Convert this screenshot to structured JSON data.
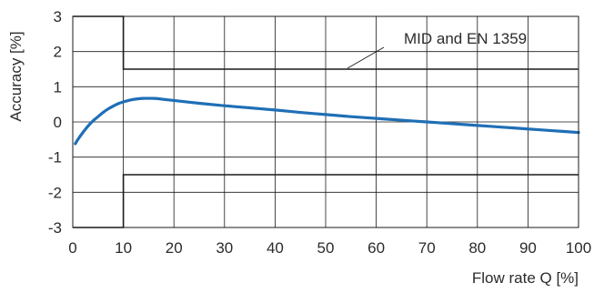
{
  "chart_data": {
    "type": "line",
    "xlabel": "Flow rate  Q  [%]",
    "ylabel": "Accuracy  [%]",
    "xlim": [
      0,
      100
    ],
    "ylim": [
      -3,
      3
    ],
    "x_ticks": [
      "0",
      "10",
      "20",
      "30",
      "40",
      "50",
      "60",
      "70",
      "80",
      "90",
      "100"
    ],
    "y_ticks": [
      "3",
      "2",
      "1",
      "0",
      "-1",
      "-2",
      "-3"
    ],
    "grid": true,
    "annotation": "MID and EN 1359",
    "limits": {
      "upper": [
        [
          0,
          3
        ],
        [
          10,
          3
        ],
        [
          10,
          1.5
        ],
        [
          100,
          1.5
        ]
      ],
      "lower": [
        [
          0,
          -3
        ],
        [
          10,
          -3
        ],
        [
          10,
          -1.5
        ],
        [
          100,
          -1.5
        ]
      ]
    },
    "series": [
      {
        "color": "#1f6fb6",
        "x": [
          0.5,
          1,
          2,
          3,
          4,
          5,
          6,
          7,
          8,
          9,
          10,
          11,
          12,
          13,
          14,
          15,
          16,
          17,
          18,
          20,
          25,
          30,
          35,
          40,
          45,
          50,
          55,
          60,
          65,
          70,
          75,
          80,
          85,
          90,
          95,
          100
        ],
        "y": [
          -0.62,
          -0.5,
          -0.3,
          -0.12,
          0.03,
          0.15,
          0.27,
          0.37,
          0.45,
          0.52,
          0.57,
          0.61,
          0.64,
          0.66,
          0.67,
          0.67,
          0.67,
          0.66,
          0.64,
          0.61,
          0.53,
          0.46,
          0.4,
          0.34,
          0.27,
          0.21,
          0.15,
          0.1,
          0.05,
          0.0,
          -0.05,
          -0.1,
          -0.15,
          -0.2,
          -0.25,
          -0.3
        ]
      }
    ]
  }
}
